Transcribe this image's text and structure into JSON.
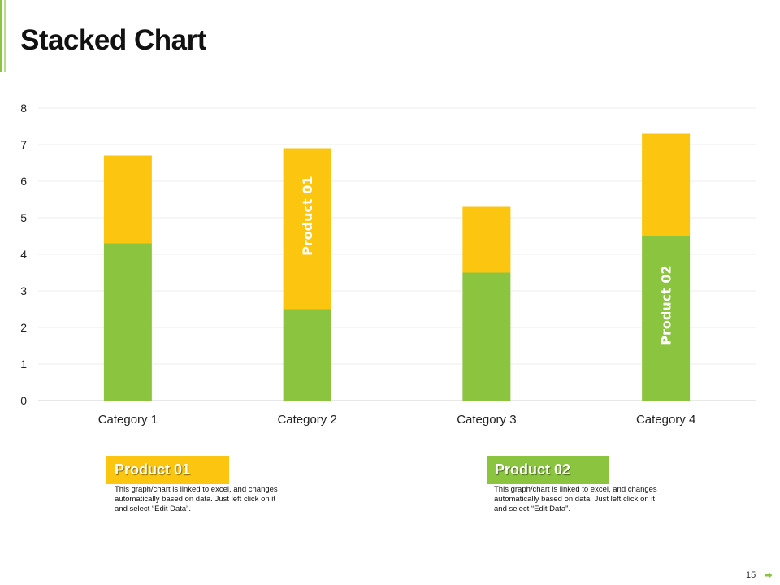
{
  "slide": {
    "title": "Stacked Chart",
    "page_number": "15"
  },
  "colors": {
    "product_01": "#fcc50f",
    "product_02": "#8bc540",
    "accent": "#8bc540"
  },
  "chart_data": {
    "type": "bar",
    "stacked": true,
    "title": "Stacked Chart",
    "categories": [
      "Category 1",
      "Category 2",
      "Category 3",
      "Category 4"
    ],
    "series": [
      {
        "name": "Product 02",
        "values": [
          4.3,
          2.5,
          3.5,
          4.5
        ]
      },
      {
        "name": "Product 01",
        "values": [
          2.4,
          4.4,
          1.8,
          2.8
        ]
      }
    ],
    "ylim": [
      0,
      8
    ],
    "yticks": [
      "0",
      "1",
      "2",
      "3",
      "4",
      "5",
      "6",
      "7",
      "8"
    ],
    "xlabel": "",
    "ylabel": "",
    "grid": true,
    "annotations": [
      {
        "text": "Product 01",
        "category": "Category 2",
        "series": "Product 01"
      },
      {
        "text": "Product 02",
        "category": "Category 4",
        "series": "Product 02"
      }
    ]
  },
  "legend": {
    "product_01": {
      "title": "Product 01",
      "description": "This graph/chart is linked to excel, and changes automatically based on data. Just left click on it and select “Edit Data”."
    },
    "product_02": {
      "title": "Product 02",
      "description": "This graph/chart is linked to excel, and changes automatically based on data. Just left click on it and select “Edit Data”."
    }
  },
  "icons": {
    "next": "arrow-right-icon"
  }
}
